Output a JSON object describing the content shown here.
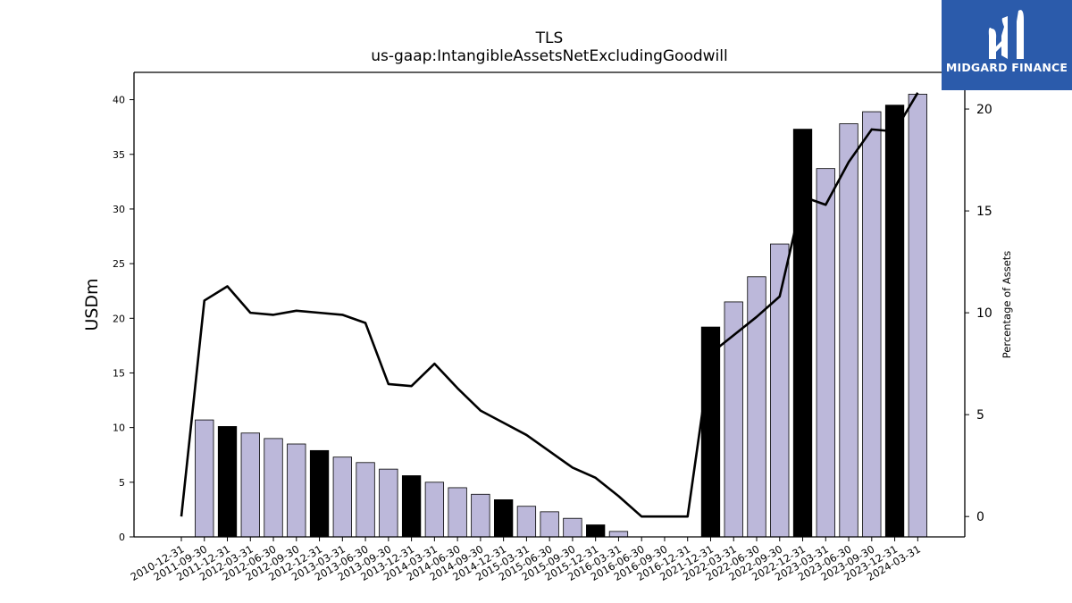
{
  "chart_data": {
    "type": "bar",
    "title": "TLS",
    "subtitle": "us-gaap:IntangibleAssetsNetExcludingGoodwill",
    "ylabel_left": "USDm",
    "ylabel_right": "Percentage of Assets",
    "ylim_left": [
      0,
      42.5
    ],
    "ylim_right": [
      -1.0,
      21.8
    ],
    "yticks_left": [
      0,
      5,
      10,
      15,
      20,
      25,
      30,
      35,
      40
    ],
    "yticks_right": [
      0,
      5,
      10,
      15,
      20
    ],
    "grid": false,
    "categories": [
      "2010-12-31",
      "2011-09-30",
      "2011-12-31",
      "2012-03-31",
      "2012-06-30",
      "2012-09-30",
      "2012-12-31",
      "2013-03-31",
      "2013-06-30",
      "2013-09-30",
      "2013-12-31",
      "2014-03-31",
      "2014-06-30",
      "2014-09-30",
      "2014-12-31",
      "2015-03-31",
      "2015-06-30",
      "2015-09-30",
      "2015-12-31",
      "2016-03-31",
      "2016-06-30",
      "2016-09-30",
      "2016-12-31",
      "2021-12-31",
      "2022-03-31",
      "2022-06-30",
      "2022-09-30",
      "2022-12-31",
      "2023-03-31",
      "2023-06-30",
      "2023-09-30",
      "2023-12-31",
      "2024-03-31"
    ],
    "series": [
      {
        "name": "",
        "type": "bar",
        "axis": "left",
        "values": [
          0,
          10.7,
          10.1,
          9.5,
          9.0,
          8.5,
          7.9,
          7.3,
          6.8,
          6.2,
          5.6,
          5.0,
          4.5,
          3.9,
          3.4,
          2.8,
          2.3,
          1.7,
          1.1,
          0.5,
          0,
          0,
          0,
          19.2,
          21.5,
          23.8,
          26.8,
          37.3,
          33.7,
          37.8,
          38.9,
          39.5,
          40.5
        ],
        "highlight": [
          false,
          false,
          true,
          false,
          false,
          false,
          true,
          false,
          false,
          false,
          true,
          false,
          false,
          false,
          true,
          false,
          false,
          false,
          true,
          false,
          false,
          false,
          true,
          true,
          false,
          false,
          false,
          true,
          false,
          false,
          false,
          true,
          false
        ],
        "color": "#bcb8da",
        "highlight_color": "#000000"
      },
      {
        "name": "",
        "type": "line",
        "axis": "right",
        "values": [
          0,
          10.6,
          11.3,
          10.0,
          9.9,
          10.1,
          10.0,
          9.9,
          9.5,
          6.5,
          6.4,
          7.5,
          6.3,
          5.2,
          4.6,
          4.0,
          3.2,
          2.4,
          1.9,
          1.0,
          0,
          0,
          0,
          8.0,
          8.9,
          9.8,
          10.8,
          15.7,
          15.3,
          17.4,
          19.0,
          18.9,
          20.8
        ],
        "color": "#000000"
      }
    ]
  },
  "logo": {
    "text": "MIDGARD FINANCE",
    "bg_color": "#2b5bab",
    "fg_color": "#ffffff"
  }
}
